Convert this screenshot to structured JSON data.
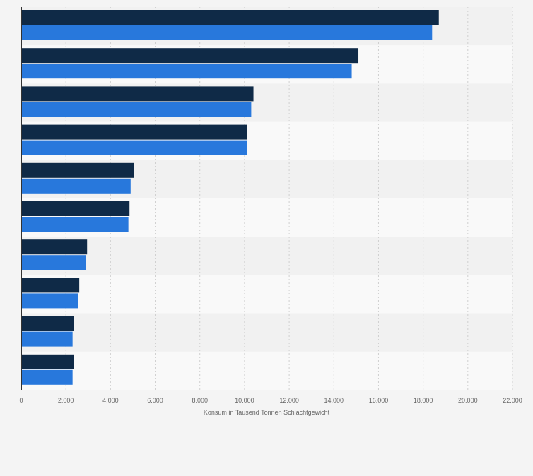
{
  "chart_data": {
    "type": "bar",
    "orientation": "horizontal",
    "categories": [
      "",
      "",
      "",
      "",
      "",
      "",
      "",
      "",
      "",
      ""
    ],
    "series": [
      {
        "values": [
          18700,
          15100,
          10400,
          10100,
          5050,
          4850,
          2950,
          2600,
          2350,
          2350
        ]
      },
      {
        "values": [
          18400,
          14800,
          10300,
          10100,
          4900,
          4800,
          2900,
          2550,
          2300,
          2300
        ]
      }
    ],
    "xlabel": "Konsum in Tausend Tonnen Schlachtgewicht",
    "ylabel": "",
    "xlim": [
      0,
      22000
    ],
    "xticks": [
      0,
      2000,
      4000,
      6000,
      8000,
      10000,
      12000,
      14000,
      16000,
      18000,
      20000,
      22000
    ],
    "tick_labels": [
      "0",
      "2.000",
      "4.000",
      "6.000",
      "8.000",
      "10.000",
      "12.000",
      "14.000",
      "16.000",
      "18.000",
      "20.000",
      "22.000"
    ],
    "grid": true,
    "legend": "none",
    "colors": {
      "series": [
        "#0f2a47",
        "#2878dc"
      ],
      "band_dark": "#f1f1f1",
      "band_light": "#f9f9f9",
      "grid": "#cfcfcf",
      "axis": "#333333",
      "text": "#666666"
    }
  }
}
